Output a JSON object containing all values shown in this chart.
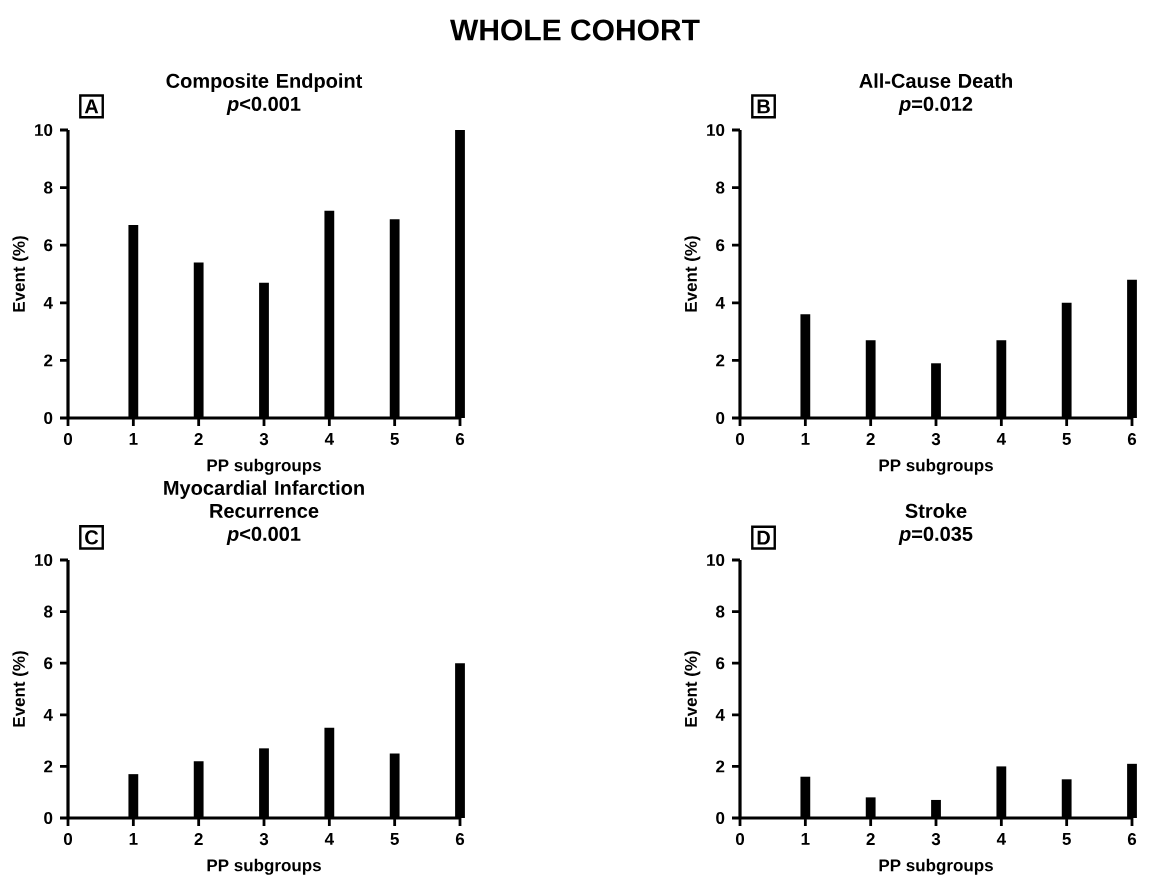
{
  "chart_data": [
    {
      "type": "bar",
      "title": "Composite Endpoint",
      "subtitle": "*p*<0.001",
      "xlabel": "PP subgroups",
      "ylabel": "Event (%)",
      "x": [
        1,
        2,
        3,
        4,
        5,
        6
      ],
      "values": [
        6.7,
        5.4,
        4.7,
        7.2,
        6.9,
        10.0
      ],
      "color": "#000000",
      "xlim": [
        0,
        6
      ],
      "xticks": [
        0,
        1,
        2,
        3,
        4,
        5,
        6
      ],
      "ylim": [
        0,
        10
      ],
      "yticks": [
        0,
        2,
        4,
        6,
        8,
        10
      ],
      "annotations": [
        "WHOLE COHORT",
        "A"
      ]
    },
    {
      "type": "bar",
      "title": "All-Cause Death",
      "subtitle": "*p*=0.012",
      "xlabel": "PP subgroups",
      "ylabel": "Event (%)",
      "x": [
        1,
        2,
        3,
        4,
        5,
        6
      ],
      "values": [
        3.6,
        2.7,
        1.9,
        2.7,
        4.0,
        4.8
      ],
      "color": "#000000",
      "xlim": [
        0,
        6
      ],
      "xticks": [
        0,
        1,
        2,
        3,
        4,
        5,
        6
      ],
      "ylim": [
        0,
        10
      ],
      "yticks": [
        0,
        2,
        4,
        6,
        8,
        10
      ],
      "annotations": [
        "B"
      ]
    },
    {
      "type": "bar",
      "title": "Myocardial Infarction Recurrence",
      "subtitle": "*p*<0.001",
      "xlabel": "PP subgroups",
      "ylabel": "Event (%)",
      "x": [
        1,
        2,
        3,
        4,
        5,
        6
      ],
      "values": [
        1.7,
        2.2,
        2.7,
        3.5,
        2.5,
        6.0
      ],
      "color": "#000000",
      "xlim": [
        0,
        6
      ],
      "xticks": [
        0,
        1,
        2,
        3,
        4,
        5,
        6
      ],
      "ylim": [
        0,
        10
      ],
      "yticks": [
        0,
        2,
        4,
        6,
        8,
        10
      ],
      "annotations": [
        "C"
      ]
    },
    {
      "type": "bar",
      "title": "Stroke",
      "subtitle": "*p*=0.035",
      "xlabel": "PP subgroups",
      "ylabel": "Event (%)",
      "x": [
        1,
        2,
        3,
        4,
        5,
        6
      ],
      "values": [
        1.6,
        0.8,
        0.7,
        2.0,
        1.5,
        2.1
      ],
      "color": "#000000",
      "xlim": [
        0,
        6
      ],
      "xticks": [
        0,
        1,
        2,
        3,
        4,
        5,
        6
      ],
      "ylim": [
        0,
        10
      ],
      "yticks": [
        0,
        2,
        4,
        6,
        8,
        10
      ],
      "annotations": [
        "D"
      ]
    }
  ]
}
